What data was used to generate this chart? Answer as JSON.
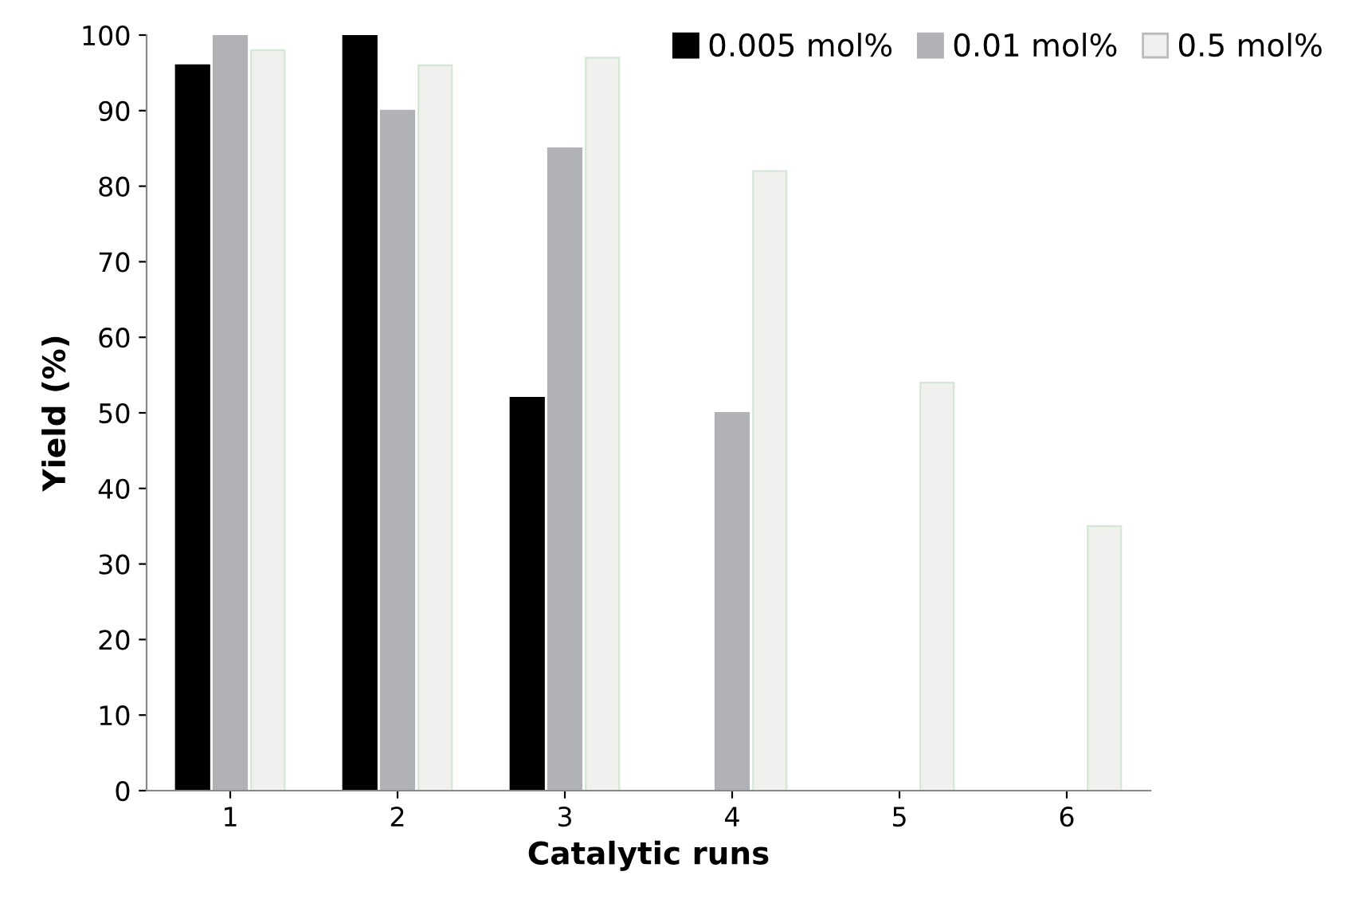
{
  "chart_data": {
    "type": "bar",
    "xlabel": "Catalytic runs",
    "ylabel": "Yield (%)",
    "categories": [
      "1",
      "2",
      "3",
      "4",
      "5",
      "6"
    ],
    "series": [
      {
        "name": "0.005 mol%",
        "color": "#000000",
        "values": [
          96,
          100,
          52,
          null,
          null,
          null
        ]
      },
      {
        "name": "0.01 mol%",
        "color": "#b1b2b6",
        "values": [
          100,
          90,
          85,
          50,
          null,
          null
        ]
      },
      {
        "name": "0.5 mol%",
        "color": "#f0f1ee",
        "values": [
          98,
          96,
          97,
          82,
          54,
          35
        ]
      }
    ],
    "ylim": [
      0,
      100
    ],
    "yticks": [
      0,
      10,
      20,
      30,
      40,
      50,
      60,
      70,
      80,
      90,
      100
    ],
    "grid": false,
    "legend": "top right"
  }
}
